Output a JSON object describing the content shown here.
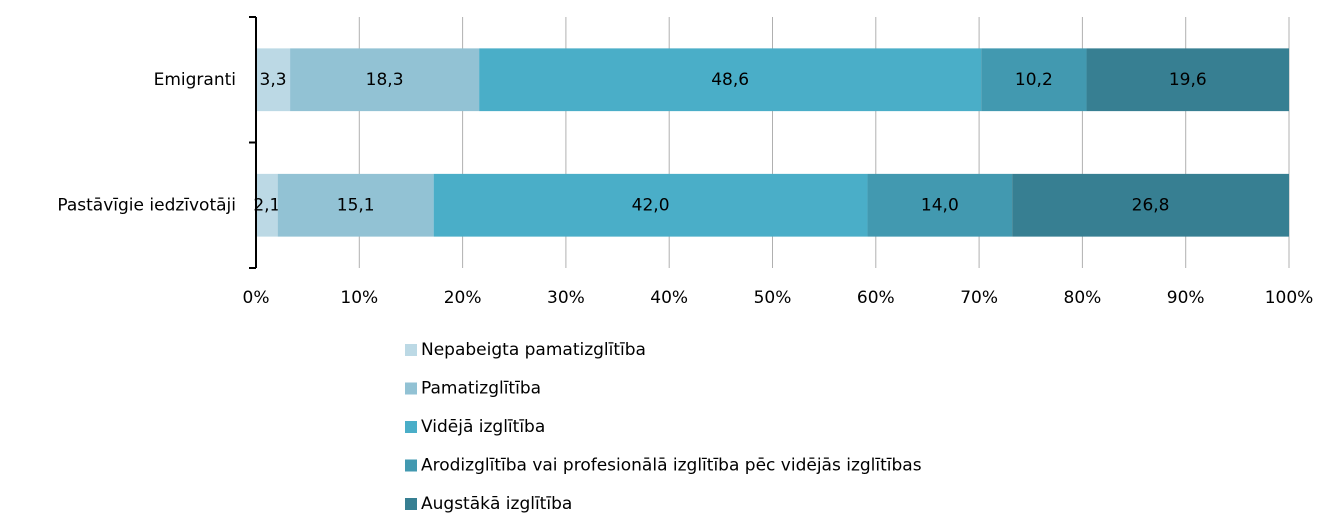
{
  "chart_data": {
    "type": "stacked-barh",
    "categories": [
      "Emigranti",
      "Pastāvīgie iedzīvotāji"
    ],
    "series": [
      {
        "name": "Nepabeigta pamatizglītība",
        "color": "#bcd9e5",
        "values": [
          3.3,
          2.1
        ],
        "value_labels": [
          "3,3",
          "2,1"
        ]
      },
      {
        "name": "Pamatizglītība",
        "color": "#92c2d4",
        "values": [
          18.3,
          15.1
        ],
        "value_labels": [
          "18,3",
          "15,1"
        ]
      },
      {
        "name": "Vidējā izglītība",
        "color": "#4aaec8",
        "values": [
          48.6,
          42.0
        ],
        "value_labels": [
          "48,6",
          "42,0"
        ]
      },
      {
        "name": "Arodizglītība vai profesionālā izglītība pēc vidējās izglītības",
        "color": "#4299b0",
        "values": [
          10.2,
          14.0
        ],
        "value_labels": [
          "10,2",
          "14,0"
        ]
      },
      {
        "name": "Augstākā izglītība",
        "color": "#377f92",
        "values": [
          19.6,
          26.8
        ],
        "value_labels": [
          "19,6",
          "26,8"
        ]
      }
    ],
    "xlim": [
      0,
      100
    ],
    "xticks": [
      {
        "value": 0,
        "label": "0%"
      },
      {
        "value": 10,
        "label": "10%"
      },
      {
        "value": 20,
        "label": "20%"
      },
      {
        "value": 30,
        "label": "30%"
      },
      {
        "value": 40,
        "label": "40%"
      },
      {
        "value": 50,
        "label": "50%"
      },
      {
        "value": 60,
        "label": "60%"
      },
      {
        "value": 70,
        "label": "70%"
      },
      {
        "value": 80,
        "label": "80%"
      },
      {
        "value": 90,
        "label": "90%"
      },
      {
        "value": 100,
        "label": "100%"
      }
    ],
    "grid": true,
    "legend": "bottom"
  }
}
